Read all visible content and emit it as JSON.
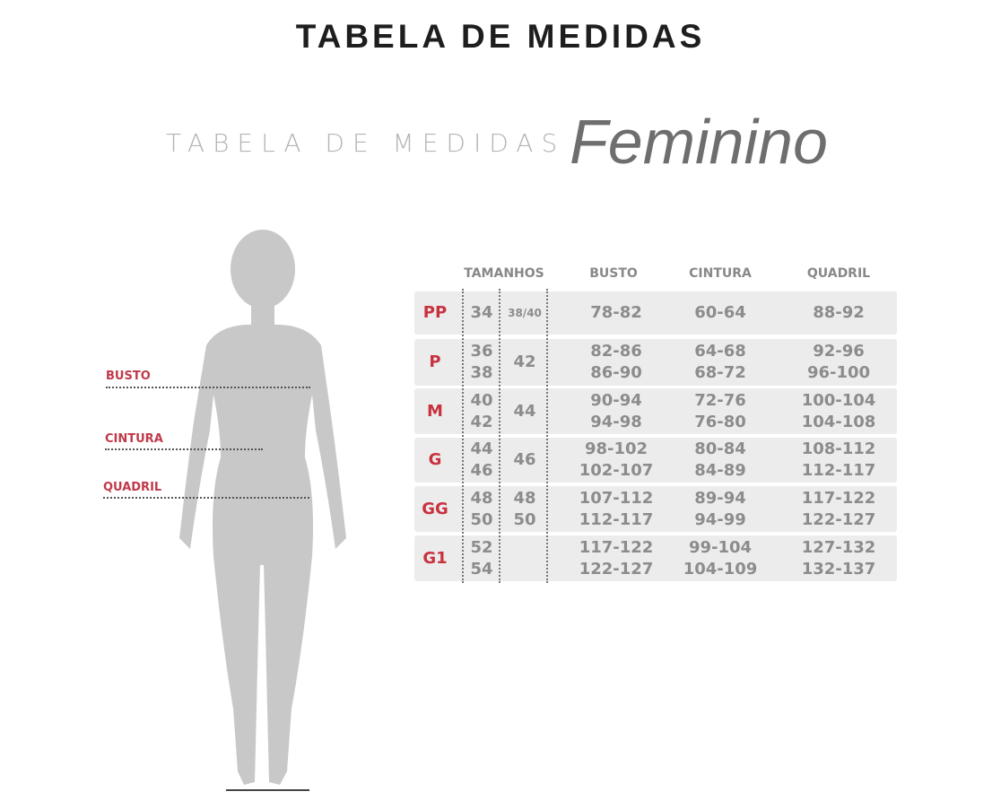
{
  "title": "TABELA DE MEDIDAS",
  "subtitle": {
    "prefix": "TABELA DE MEDIDAS",
    "category": "Feminino"
  },
  "figure_labels": {
    "busto": "BUSTO",
    "cintura": "CINTURA",
    "quadril": "QUADRIL"
  },
  "table": {
    "headers": {
      "tamanhos": "TAMANHOS",
      "busto": "BUSTO",
      "cintura": "CINTURA",
      "quadril": "QUADRIL"
    },
    "rows": [
      {
        "size": "PP",
        "num1": "34",
        "num2": "38/40",
        "busto": "78-82",
        "cintura": "60-64",
        "quadril": "88-92"
      },
      {
        "size": "P",
        "num1": "36\n38",
        "num2": "42",
        "busto": "82-86\n86-90",
        "cintura": "64-68\n68-72",
        "quadril": "92-96\n96-100"
      },
      {
        "size": "M",
        "num1": "40\n42",
        "num2": "44",
        "busto": "90-94\n94-98",
        "cintura": "72-76\n76-80",
        "quadril": "100-104\n104-108"
      },
      {
        "size": "G",
        "num1": "44\n46",
        "num2": "46",
        "busto": "98-102\n102-107",
        "cintura": "80-84\n84-89",
        "quadril": "108-112\n112-117"
      },
      {
        "size": "GG",
        "num1": "48\n50",
        "num2": "48\n50",
        "busto": "107-112\n112-117",
        "cintura": "89-94\n94-99",
        "quadril": "117-122\n122-127"
      },
      {
        "size": "G1",
        "num1": "52\n54",
        "num2": "",
        "busto": "117-122\n122-127",
        "cintura": "99-104\n104-109",
        "quadril": "127-132\n132-137"
      }
    ]
  },
  "colors": {
    "accent": "#c8323f",
    "text_gray": "#8c8c8c",
    "row_bg": "#ececec",
    "silhouette": "#c8c8c8"
  }
}
